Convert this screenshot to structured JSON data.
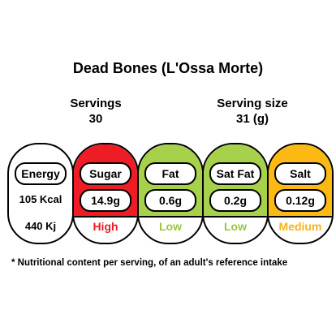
{
  "title": "Dead Bones (L'Ossa Morte)",
  "servings": {
    "label": "Servings",
    "value": "30"
  },
  "serving_size": {
    "label": "Serving size",
    "value": "31 (g)"
  },
  "energy": {
    "label": "Energy",
    "kcal": "105 Kcal",
    "kj": "440 Kj"
  },
  "nutrients": [
    {
      "name": "Sugar",
      "value": "14.9g",
      "level": "High",
      "color": "#ee1c25",
      "level_color": "#ee1c25"
    },
    {
      "name": "Fat",
      "value": "0.6g",
      "level": "Low",
      "color": "#a7d14b",
      "level_color": "#9bc53d"
    },
    {
      "name": "Sat Fat",
      "value": "0.2g",
      "level": "Low",
      "color": "#a7d14b",
      "level_color": "#9bc53d"
    },
    {
      "name": "Salt",
      "value": "0.12g",
      "level": "Medium",
      "color": "#fdb913",
      "level_color": "#f7b21c"
    }
  ],
  "footnote": "* Nutritional content per serving, of an adult's reference intake"
}
